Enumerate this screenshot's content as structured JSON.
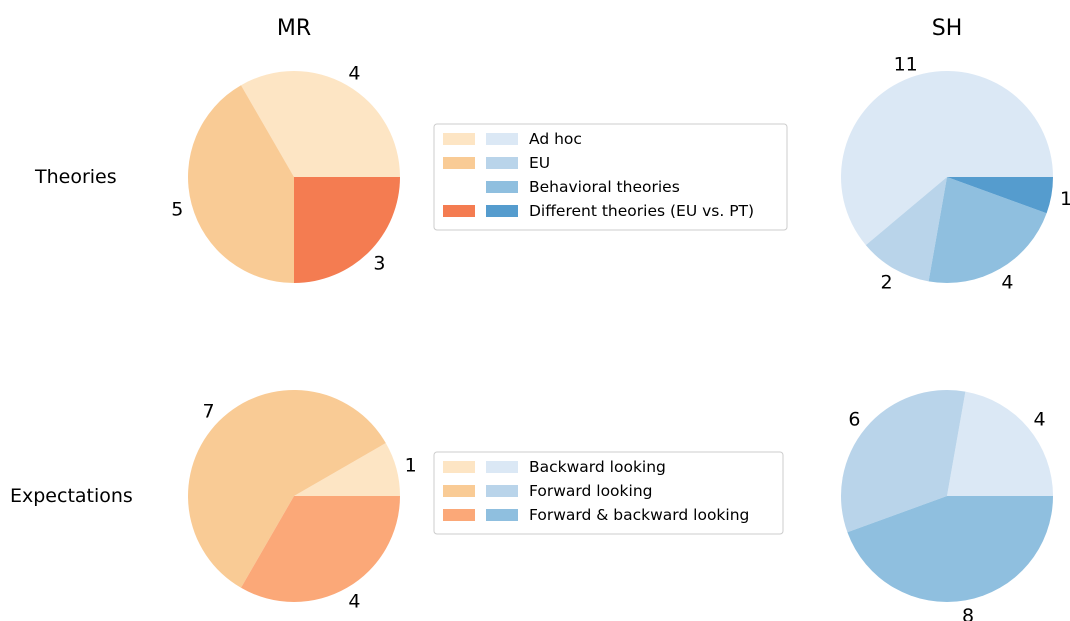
{
  "column_titles": {
    "mr": "MR",
    "sh": "SH"
  },
  "row_labels": {
    "theories": "Theories",
    "expectations": "Expectations"
  },
  "legend_theories": {
    "entries": [
      {
        "label": "Ad hoc",
        "mr_color": "#fde5c4",
        "sh_color": "#dbe8f5"
      },
      {
        "label": "EU",
        "mr_color": "#f9cb95",
        "sh_color": "#b9d4ea"
      },
      {
        "label": "Behavioral theories",
        "mr_color": null,
        "sh_color": "#8fbfdf"
      },
      {
        "label": "Different theories (EU vs. PT)",
        "mr_color": "#f47c51",
        "sh_color": "#559cce"
      }
    ]
  },
  "legend_expectations": {
    "entries": [
      {
        "label": "Backward looking",
        "mr_color": "#fde5c4",
        "sh_color": "#dbe8f5"
      },
      {
        "label": "Forward looking",
        "mr_color": "#f9cb95",
        "sh_color": "#b9d4ea"
      },
      {
        "label": "Forward & backward looking",
        "mr_color": "#fba878",
        "sh_color": "#8fbfdf"
      }
    ]
  },
  "chart_data": [
    {
      "type": "pie",
      "title": "MR",
      "row": "Theories",
      "categories": [
        "Ad hoc",
        "EU",
        "Different theories (EU vs. PT)"
      ],
      "values": [
        4,
        5,
        3
      ],
      "colors": [
        "#fde5c4",
        "#f9cb95",
        "#f47c51"
      ]
    },
    {
      "type": "pie",
      "title": "SH",
      "row": "Theories",
      "categories": [
        "Ad hoc",
        "EU",
        "Behavioral theories",
        "Different theories (EU vs. PT)"
      ],
      "values": [
        11,
        2,
        4,
        1
      ],
      "colors": [
        "#dbe8f5",
        "#b9d4ea",
        "#8fbfdf",
        "#559cce"
      ]
    },
    {
      "type": "pie",
      "title": "MR",
      "row": "Expectations",
      "categories": [
        "Backward looking",
        "Forward looking",
        "Forward & backward looking"
      ],
      "values": [
        1,
        7,
        4
      ],
      "colors": [
        "#fde5c4",
        "#f9cb95",
        "#fba878"
      ]
    },
    {
      "type": "pie",
      "title": "SH",
      "row": "Expectations",
      "categories": [
        "Backward looking",
        "Forward looking",
        "Forward & backward looking"
      ],
      "values": [
        4,
        6,
        8
      ],
      "colors": [
        "#dbe8f5",
        "#b9d4ea",
        "#8fbfdf"
      ]
    }
  ]
}
